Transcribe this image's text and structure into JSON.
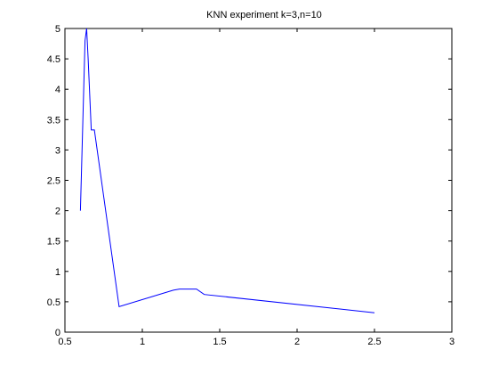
{
  "chart_data": {
    "type": "line",
    "title": "KNN experiment k=3,n=10",
    "xlabel": "",
    "ylabel": "",
    "xlim": [
      0.5,
      3
    ],
    "ylim": [
      0,
      5
    ],
    "xticks": [
      0.5,
      1,
      1.5,
      2,
      2.5,
      3
    ],
    "xtick_labels": [
      "0.5",
      "1",
      "1.5",
      "2",
      "2.5",
      "3"
    ],
    "yticks": [
      0,
      0.5,
      1,
      1.5,
      2,
      2.5,
      3,
      3.5,
      4,
      4.5,
      5
    ],
    "ytick_labels": [
      "0",
      "0.5",
      "1",
      "1.5",
      "2",
      "2.5",
      "3",
      "3.5",
      "4",
      "4.5",
      "5"
    ],
    "grid": false,
    "series": [
      {
        "color": "#0000ff",
        "x": [
          0.6,
          0.63,
          0.64,
          0.65,
          0.67,
          0.68,
          0.69,
          0.85,
          1.2,
          1.24,
          1.35,
          1.4,
          2.5
        ],
        "y": [
          2.0,
          4.8,
          5.0,
          4.5,
          3.33,
          3.33,
          3.33,
          0.42,
          0.69,
          0.71,
          0.71,
          0.62,
          0.32
        ]
      }
    ]
  }
}
